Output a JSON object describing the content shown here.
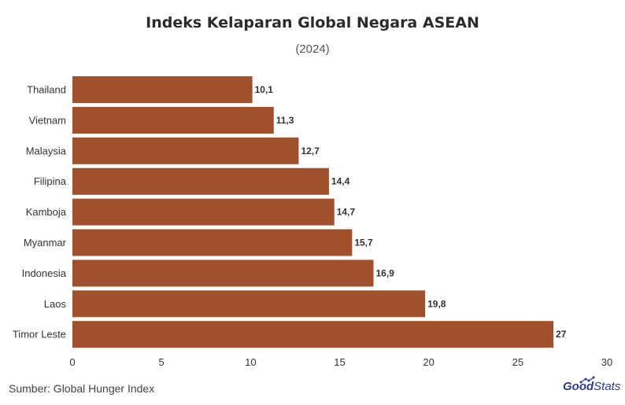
{
  "title": "Indeks Kelaparan Global Negara ASEAN",
  "subtitle": "(2024)",
  "source": "Sumber: Global Hunger Index",
  "logo": {
    "good": "Good",
    "stats": "Stats"
  },
  "colors": {
    "bar": "#a0502a",
    "text": "#333333",
    "brand": "#2d3a8c"
  },
  "chart_data": {
    "type": "bar",
    "orientation": "horizontal",
    "title": "Indeks Kelaparan Global Negara ASEAN",
    "subtitle": "(2024)",
    "categories": [
      "Thailand",
      "Vietnam",
      "Malaysia",
      "Filipina",
      "Kamboja",
      "Myanmar",
      "Indonesia",
      "Laos",
      "Timor Leste"
    ],
    "values": [
      10.1,
      11.3,
      12.7,
      14.4,
      14.7,
      15.7,
      16.9,
      19.8,
      27
    ],
    "value_labels": [
      "10,1",
      "11,3",
      "12,7",
      "14,4",
      "14,7",
      "15,7",
      "16,9",
      "19,8",
      "27"
    ],
    "xlim": [
      0,
      30
    ],
    "xticks": [
      0,
      5,
      10,
      15,
      20,
      25,
      30
    ],
    "grid": false,
    "legend": "none"
  }
}
